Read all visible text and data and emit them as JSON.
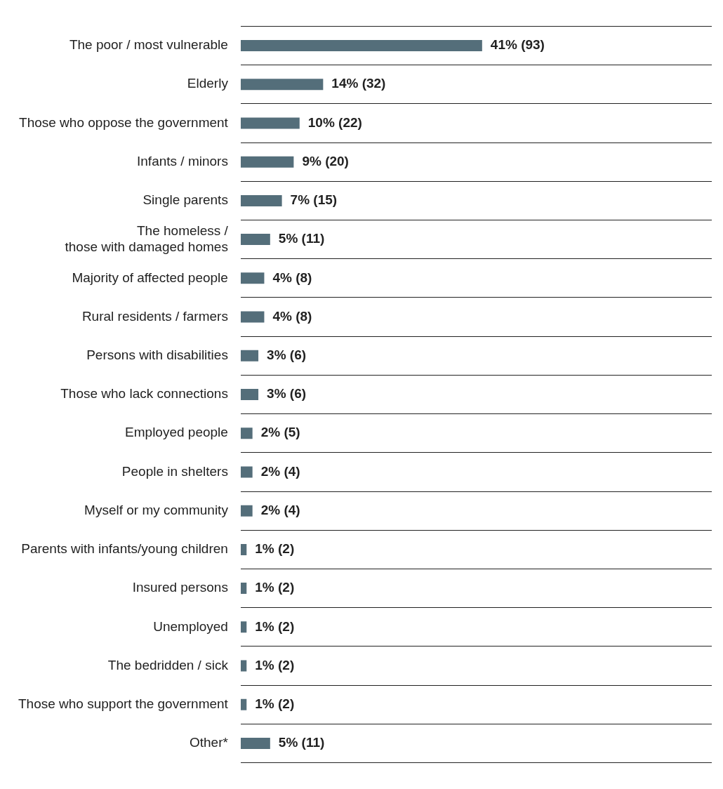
{
  "chart_data": {
    "type": "bar",
    "orientation": "horizontal",
    "grid": "y",
    "legend": false,
    "categories": [
      "The poor / most vulnerable",
      "Elderly",
      "Those who oppose the government",
      "Infants / minors",
      "Single parents",
      "The homeless /\nthose with damaged homes",
      "Majority of affected people",
      "Rural residents / farmers",
      "Persons with disabilities",
      "Those who lack connections",
      "Employed people",
      "People in shelters",
      "Myself or my community",
      "Parents with infants/young children",
      "Insured persons",
      "Unemployed",
      "The bedridden / sick",
      "Those who support the government",
      "Other*"
    ],
    "values": [
      41,
      14,
      10,
      9,
      7,
      5,
      4,
      4,
      3,
      3,
      2,
      2,
      2,
      1,
      1,
      1,
      1,
      1,
      5
    ],
    "value_labels": [
      "41% (93)",
      "14% (32)",
      "10% (22)",
      "9% (20)",
      "7% (15)",
      "5% (11)",
      "4% (8)",
      "4% (8)",
      "3% (6)",
      "3% (6)",
      "2% (5)",
      "2% (4)",
      "2% (4)",
      "1% (2)",
      "1% (2)",
      "1% (2)",
      "1% (2)",
      "1% (2)",
      "5% (11)"
    ],
    "color": "#546e7a"
  }
}
